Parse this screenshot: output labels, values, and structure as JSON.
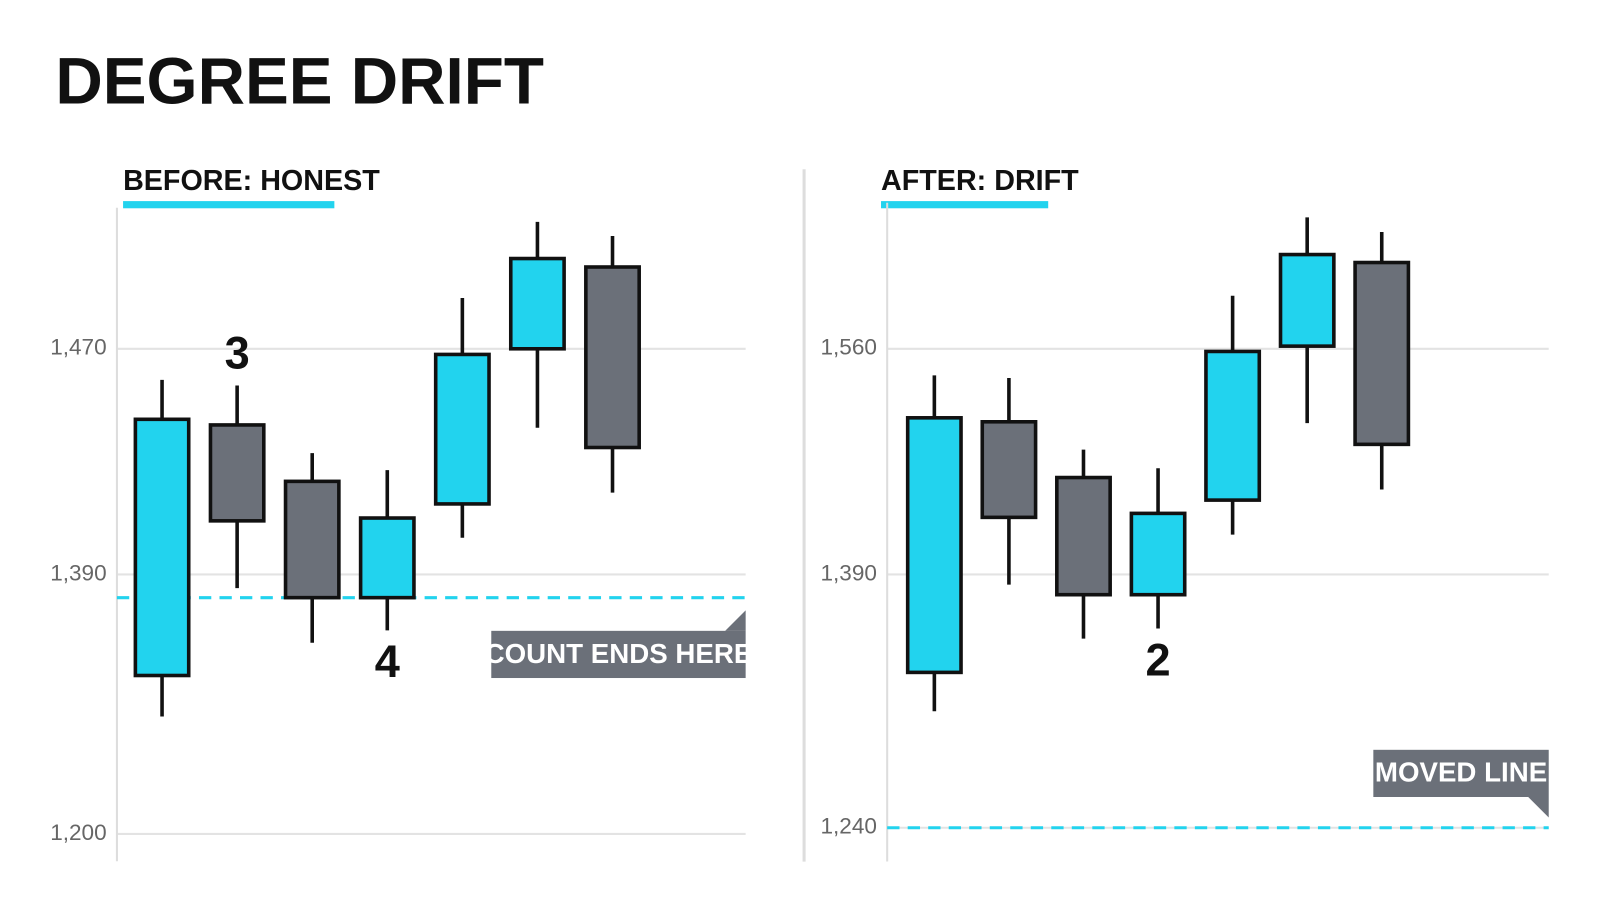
{
  "title": "DEGREE DRIFT",
  "chart_data": [
    {
      "type": "candlestick",
      "title": "BEFORE: HONEST",
      "open": [
        1316,
        1443,
        1423,
        1373,
        1415,
        1470,
        1499
      ],
      "high": [
        1459,
        1457,
        1433,
        1427,
        1488,
        1515,
        1510
      ],
      "low": [
        1286,
        1380,
        1340,
        1349,
        1403,
        1442,
        1419
      ],
      "close": [
        1445,
        1409,
        1373,
        1410,
        1468,
        1502,
        1435
      ],
      "up_color": "#22d3ee",
      "down_color": "#6b7079",
      "ylim": [
        1180,
        1520
      ],
      "yticks": [
        {
          "value": 1200,
          "label": "1,200"
        },
        {
          "value": 1390,
          "label": "1,390"
        },
        {
          "value": 1470,
          "label": "1,470"
        }
      ],
      "grid": true,
      "level": 1373,
      "level_color": "#22d3ee",
      "annotations": [
        "3",
        "4"
      ],
      "callout": "COUNT ENDS HERE"
    },
    {
      "type": "candlestick",
      "title": "AFTER: DRIFT",
      "open": [
        1332,
        1505,
        1463,
        1378,
        1446,
        1562,
        1625
      ],
      "high": [
        1540,
        1538,
        1484,
        1470,
        1600,
        1659,
        1648
      ],
      "low": [
        1309,
        1384,
        1352,
        1358,
        1420,
        1504,
        1454
      ],
      "close": [
        1508,
        1433,
        1378,
        1436,
        1558,
        1631,
        1488
      ],
      "up_color": "#22d3ee",
      "down_color": "#6b7079",
      "ylim": [
        1220,
        1670
      ],
      "yticks": [
        {
          "value": 1240,
          "label": "1,240"
        },
        {
          "value": 1390,
          "label": "1,390"
        },
        {
          "value": 1560,
          "label": "1,560"
        }
      ],
      "grid": true,
      "level": 1240,
      "level_color": "#22d3ee",
      "annotations": [
        "2"
      ],
      "callout": "MOVED LINE"
    }
  ]
}
